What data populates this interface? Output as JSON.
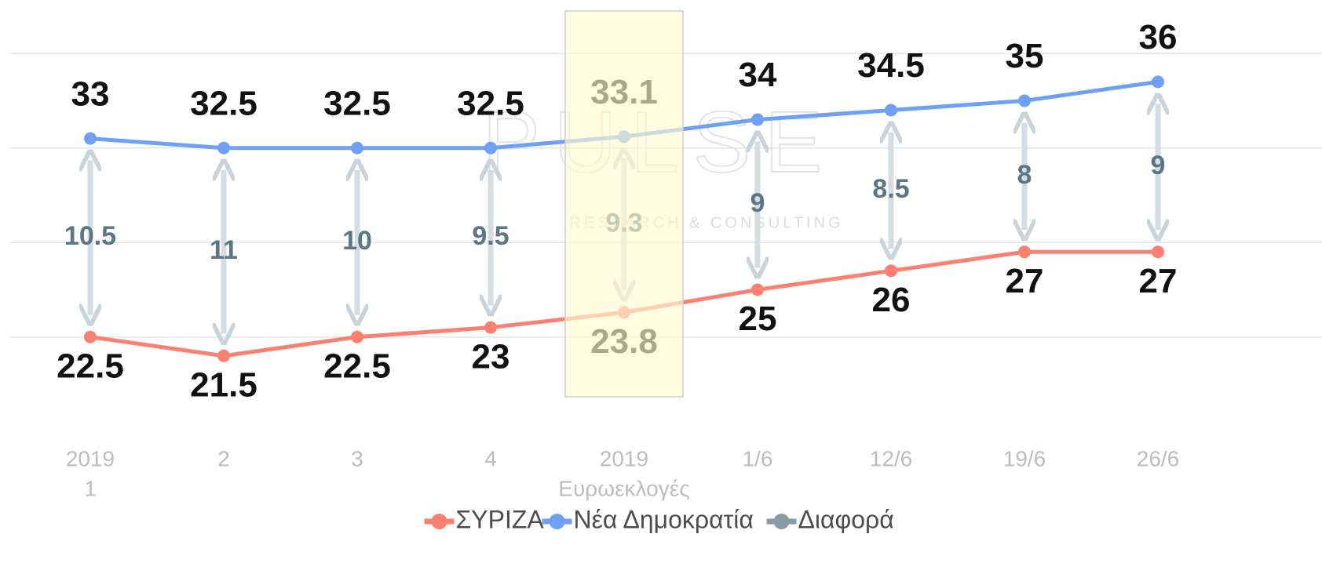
{
  "chart_data": {
    "type": "line",
    "categories": [
      [
        "2019",
        "1"
      ],
      [
        "2"
      ],
      [
        "3"
      ],
      [
        "4"
      ],
      [
        "2019",
        "Ευρωεκλογές"
      ],
      [
        "1/6"
      ],
      [
        "12/6"
      ],
      [
        "19/6"
      ],
      [
        "26/6"
      ]
    ],
    "series": [
      {
        "name": "ΣΥΡΙΖΑ",
        "color": "#fb8072",
        "values": [
          22.5,
          21.5,
          22.5,
          23,
          23.8,
          25,
          26,
          27,
          27
        ]
      },
      {
        "name": "Νέα Δημοκρατία",
        "color": "#6fa0f5",
        "values": [
          33,
          32.5,
          32.5,
          32.5,
          33.1,
          34,
          34.5,
          35,
          36
        ]
      },
      {
        "name": "Διαφορά",
        "color": "#8a9ba6",
        "values": [
          10.5,
          11,
          10,
          9.5,
          9.3,
          9,
          8.5,
          8,
          9
        ]
      }
    ],
    "ylim": [
      19.5,
      39.5
    ],
    "yticks": [
      22.5,
      27.5,
      32.5,
      37.5
    ],
    "grid": true,
    "highlight": 4,
    "watermark": "PULSE",
    "watermark_subtitle": "RESEARCH & CONSULTING",
    "legend": "bottom"
  }
}
